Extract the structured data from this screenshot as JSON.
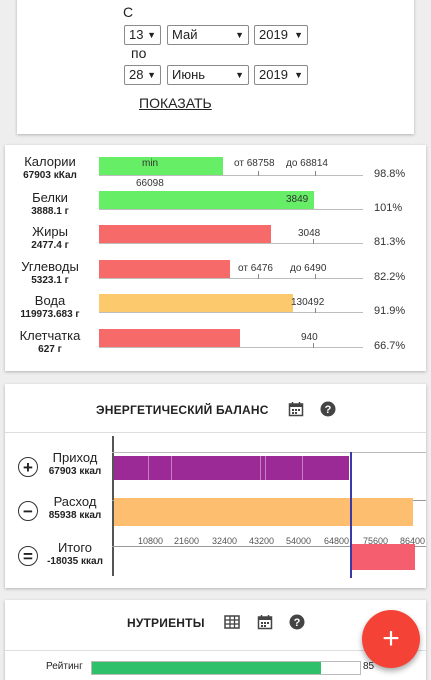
{
  "period": {
    "from_label": "С",
    "to_label": "по",
    "from": {
      "day": "13",
      "month": "Май",
      "year": "2019"
    },
    "to": {
      "day": "28",
      "month": "Июнь",
      "year": "2019"
    },
    "show_button": "ПОКАЗАТЬ"
  },
  "nutrients_summary": [
    {
      "name": "Калории",
      "value": "67903 кКал",
      "bar_text": "min",
      "range_from": "от 68758",
      "range_to": "до 68814",
      "below": "66098",
      "percent": "98.8%",
      "fraction": 0.5,
      "color": "#66ee66"
    },
    {
      "name": "Белки",
      "value": "3888.1 г",
      "bar_text": "3849",
      "percent": "101%",
      "fraction": 1.0,
      "color": "#66ee66"
    },
    {
      "name": "Жиры",
      "value": "2477.4 г",
      "bar_text": "3048",
      "percent": "81.3%",
      "fraction": 0.813,
      "color": "#f76a6a"
    },
    {
      "name": "Углеводы",
      "value": "5323.1 г",
      "range_from": "от 6476",
      "range_to": "до 6490",
      "percent": "82.2%",
      "fraction": 0.513,
      "color": "#f76a6a"
    },
    {
      "name": "Вода",
      "value": "119973.683 г",
      "bar_text": "130492",
      "percent": "91.9%",
      "fraction": 0.919,
      "color": "#fcc96c"
    },
    {
      "name": "Клетчатка",
      "value": "627 г",
      "bar_text": "940",
      "percent": "66.7%",
      "fraction": 0.667,
      "color": "#f76a6a"
    }
  ],
  "energy_balance": {
    "title": "ЭНЕРГЕТИЧЕСКИЙ БАЛАНС",
    "income_label": "Приход",
    "income_value": "67903 ккал",
    "expense_label": "Расход",
    "expense_value": "85938 ккал",
    "total_label": "Итого",
    "total_value": "-18035 ккал",
    "axis_ticks": [
      "10800",
      "21600",
      "32400",
      "43200",
      "54000",
      "64800",
      "75600",
      "86400"
    ],
    "colors": {
      "income": "#9b2a96",
      "expense": "#fdbf6f",
      "total": "#f55e6e"
    }
  },
  "nutrients": {
    "title": "НУТРИЕНТЫ",
    "rating_label": "Рейтинг",
    "rating_value": "85",
    "rating_fraction": 0.85
  },
  "fab_label": "+"
}
